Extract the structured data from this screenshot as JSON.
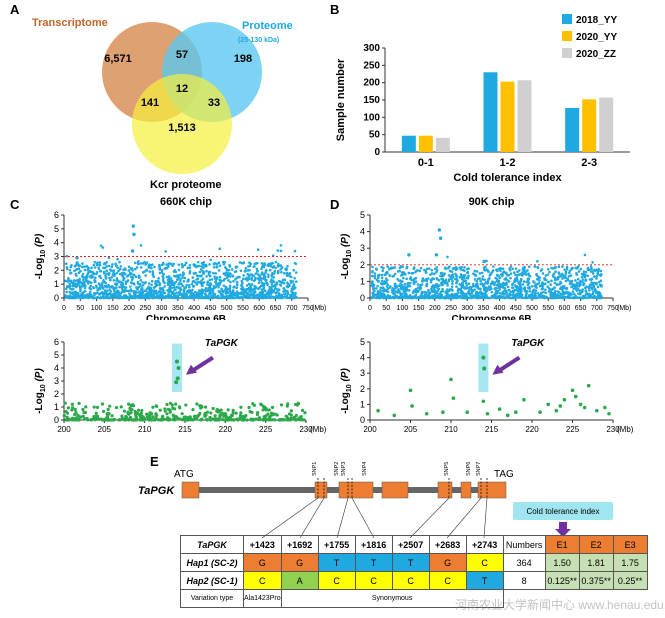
{
  "panel_letters": {
    "a": "A",
    "b": "B",
    "c": "C",
    "d": "D",
    "e": "E"
  },
  "venn": {
    "labels": {
      "transcriptome": "Transcriptome",
      "proteome": "Proteome",
      "proteome_range": "(25-130 kDa)",
      "kcr": "Kcr proteome"
    },
    "counts": {
      "t_only": "6,571",
      "tp": "57",
      "p_only": "198",
      "tk": "141",
      "all": "12",
      "pk": "33",
      "k_only": "1,513"
    },
    "colors": {
      "transcriptome": "#d99058",
      "proteome": "#5bc8f0",
      "kcr": "#f5f03c",
      "transcriptome_text": "#c0652a",
      "proteome_text": "#1fa9e0"
    }
  },
  "chart_data": [
    {
      "type": "bar",
      "categories": [
        "0-1",
        "1-2",
        "2-3"
      ],
      "series": [
        {
          "name": "2018_YY",
          "values": [
            47,
            230,
            127
          ],
          "color": "#1fa9e0"
        },
        {
          "name": "2020_YY",
          "values": [
            47,
            203,
            152
          ],
          "color": "#ffc000"
        },
        {
          "name": "2020_ZZ",
          "values": [
            41,
            207,
            157
          ],
          "color": "#d0d0d0"
        }
      ],
      "ylim": [
        0,
        300
      ],
      "yticks": [
        "0",
        "50",
        "100",
        "150",
        "200",
        "250",
        "300"
      ],
      "xlabel": "Cold tolerance index",
      "ylabel": "Sample number",
      "legend": "top-right"
    },
    {
      "type": "scatter",
      "title": "660K chip",
      "xlabel": "Chromosome 6B",
      "xunit": "(Mb)",
      "ylabel_parts": [
        "-Log",
        "10",
        "(P)"
      ],
      "xlim": [
        0,
        750
      ],
      "ylim": [
        0,
        6
      ],
      "xticks": [
        "0",
        "50",
        "100",
        "150",
        "200",
        "250",
        "300",
        "350",
        "400",
        "450",
        "500",
        "550",
        "600",
        "650",
        "700",
        "750"
      ],
      "yticks": [
        "0",
        "1",
        "2",
        "3",
        "4",
        "5",
        "6"
      ],
      "threshold": 3,
      "color": "#1fa9e0",
      "peak_points": [
        [
          213,
          5.2
        ],
        [
          215,
          4.6
        ],
        [
          211,
          3.4
        ],
        [
          40,
          2.9
        ]
      ]
    },
    {
      "type": "scatter",
      "title": "90K chip",
      "xlabel": "Chromosome 6B",
      "xunit": "(Mb)",
      "ylabel_parts": [
        "-Log",
        "10",
        "(P)"
      ],
      "xlim": [
        0,
        750
      ],
      "ylim": [
        0,
        5
      ],
      "xticks": [
        "0",
        "50",
        "100",
        "150",
        "200",
        "250",
        "300",
        "350",
        "400",
        "450",
        "500",
        "550",
        "600",
        "650",
        "700",
        "750"
      ],
      "yticks": [
        "0",
        "1",
        "2",
        "3",
        "4",
        "5"
      ],
      "threshold": 2,
      "color": "#1fa9e0",
      "peak_points": [
        [
          214,
          4.1
        ],
        [
          218,
          3.6
        ],
        [
          120,
          2.6
        ],
        [
          352,
          2.2
        ],
        [
          205,
          2.6
        ]
      ]
    },
    {
      "type": "scatter",
      "xunit": "(Mb)",
      "ylabel_parts": [
        "-Log",
        "10",
        "(P)"
      ],
      "xlim": [
        200,
        230
      ],
      "ylim": [
        0,
        6
      ],
      "xticks": [
        "200",
        "205",
        "210",
        "215",
        "220",
        "225",
        "230"
      ],
      "yticks": [
        "0",
        "1",
        "2",
        "3",
        "4",
        "5",
        "6"
      ],
      "annotation": "TaPGK",
      "color": "#2aa84a",
      "highlight_x": 214,
      "highlight_points": [
        [
          214,
          4.5
        ],
        [
          214.2,
          4.0
        ],
        [
          214.1,
          3.2
        ],
        [
          213.9,
          2.9
        ]
      ]
    },
    {
      "type": "scatter",
      "xunit": "(Mb)",
      "ylabel_parts": [
        "-Log",
        "10",
        "(P)"
      ],
      "xlim": [
        200,
        230
      ],
      "ylim": [
        0,
        5
      ],
      "xticks": [
        "200",
        "205",
        "210",
        "215",
        "220",
        "225",
        "230"
      ],
      "yticks": [
        "0",
        "1",
        "2",
        "3",
        "4",
        "5"
      ],
      "annotation": "TaPGK",
      "color": "#2aa84a",
      "highlight_x": 214,
      "highlight_points": [
        [
          214,
          4.0
        ],
        [
          214.1,
          3.3
        ]
      ],
      "points": [
        [
          201,
          0.6
        ],
        [
          203,
          0.3
        ],
        [
          205,
          1.9
        ],
        [
          205.2,
          0.9
        ],
        [
          207,
          0.4
        ],
        [
          209,
          0.5
        ],
        [
          210,
          2.6
        ],
        [
          210.3,
          1.4
        ],
        [
          212,
          0.5
        ],
        [
          214,
          1.2
        ],
        [
          214.5,
          0.4
        ],
        [
          216,
          0.7
        ],
        [
          217,
          0.3
        ],
        [
          219,
          1.3
        ],
        [
          221,
          0.5
        ],
        [
          222,
          1.0
        ],
        [
          223,
          0.6
        ],
        [
          224,
          1.3
        ],
        [
          225,
          1.9
        ],
        [
          225.4,
          1.5
        ],
        [
          226,
          1.0
        ],
        [
          226.5,
          0.8
        ],
        [
          227,
          2.2
        ],
        [
          228,
          0.6
        ],
        [
          229,
          0.8
        ],
        [
          229.5,
          0.4
        ],
        [
          223.5,
          0.9
        ],
        [
          218,
          0.5
        ]
      ]
    }
  ],
  "gene": {
    "start_label": "ATG",
    "end_label": "TAG",
    "name": "TaPGK",
    "snps": [
      "SNP1",
      "SNP2",
      "SNP3",
      "SNP4",
      "SNP5",
      "SNP6",
      "SNP7"
    ]
  },
  "table": {
    "header": [
      "TaPGK",
      "+1423",
      "+1692",
      "+1755",
      "+1816",
      "+2507",
      "+2683",
      "+2743",
      "Numbers",
      "E1",
      "E2",
      "E3"
    ],
    "rows": [
      {
        "name": "Hap1 (SC-2)",
        "cells": [
          "G",
          "G",
          "T",
          "T",
          "T",
          "G",
          "C"
        ],
        "number": "364",
        "ci": [
          "1.50",
          "1.81",
          "1.75"
        ]
      },
      {
        "name": "Hap2 (SC-1)",
        "cells": [
          "C",
          "A",
          "C",
          "C",
          "C",
          "C",
          "T"
        ],
        "number": "8",
        "ci": [
          "0.125**",
          "0.375**",
          "0.25**"
        ]
      }
    ],
    "variation_label": "Variation type",
    "variation_first": "Ala1423Pro",
    "variation_rest": "Synonymous",
    "ci_label": "Cold tolerance index"
  },
  "watermark": "河南农业大学新闻中心 www.henau.edu.cn"
}
